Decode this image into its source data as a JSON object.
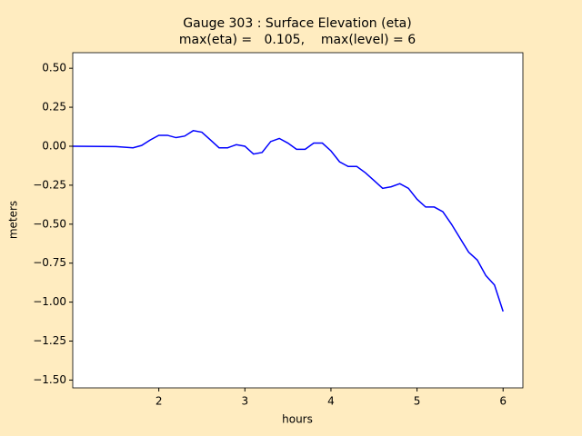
{
  "chart_data": {
    "type": "line",
    "title": "Gauge 303 : Surface Elevation (eta)",
    "subtitle": "max(eta) =   0.105,    max(level) = 6",
    "x_label": "hours",
    "y_label": "meters",
    "xlim": [
      1.0,
      6.23
    ],
    "ylim": [
      -1.55,
      0.6
    ],
    "xticks": [
      2,
      3,
      4,
      5,
      6
    ],
    "yticks": [
      {
        "value": 0.5,
        "label": "0.50"
      },
      {
        "value": 0.25,
        "label": "0.25"
      },
      {
        "value": 0,
        "label": "0.00"
      },
      {
        "value": -0.25,
        "label": "−0.25"
      },
      {
        "value": -0.5,
        "label": "−0.50"
      },
      {
        "value": -0.75,
        "label": "−0.75"
      },
      {
        "value": -1.0,
        "label": "−1.00"
      },
      {
        "value": -1.25,
        "label": "−1.25"
      },
      {
        "value": -1.5,
        "label": "−1.50"
      }
    ],
    "x": [
      1.0,
      1.5,
      1.7,
      1.8,
      1.9,
      2.0,
      2.1,
      2.2,
      2.3,
      2.4,
      2.5,
      2.6,
      2.7,
      2.8,
      2.9,
      3.0,
      3.1,
      3.2,
      3.3,
      3.4,
      3.5,
      3.6,
      3.7,
      3.8,
      3.9,
      4.0,
      4.1,
      4.2,
      4.3,
      4.4,
      4.5,
      4.6,
      4.7,
      4.8,
      4.9,
      5.0,
      5.1,
      5.2,
      5.3,
      5.4,
      5.5,
      5.6,
      5.7,
      5.8,
      5.9,
      6.0
    ],
    "series": [
      {
        "color": "#0000ff",
        "values": [
          0.0,
          -0.002,
          -0.01,
          0.005,
          0.04,
          0.07,
          0.07,
          0.055,
          0.065,
          0.1,
          0.09,
          0.04,
          -0.01,
          -0.01,
          0.01,
          0.0,
          -0.05,
          -0.04,
          0.03,
          0.05,
          0.02,
          -0.02,
          -0.02,
          0.02,
          0.02,
          -0.03,
          -0.1,
          -0.13,
          -0.13,
          -0.17,
          -0.22,
          -0.27,
          -0.26,
          -0.24,
          -0.27,
          -0.34,
          -0.39,
          -0.39,
          -0.42,
          -0.5,
          -0.59,
          -0.68,
          -0.73,
          -0.83,
          -0.89,
          -1.06
        ]
      }
    ]
  }
}
